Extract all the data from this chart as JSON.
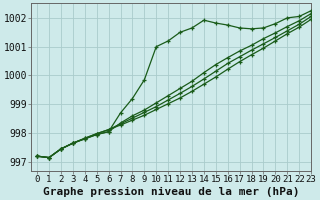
{
  "title": "Graphe pression niveau de la mer (hPa)",
  "xlim": [
    -0.5,
    23
  ],
  "ylim": [
    996.7,
    1002.5
  ],
  "yticks": [
    997,
    998,
    999,
    1000,
    1001,
    1002
  ],
  "xticks": [
    0,
    1,
    2,
    3,
    4,
    5,
    6,
    7,
    8,
    9,
    10,
    11,
    12,
    13,
    14,
    15,
    16,
    17,
    18,
    19,
    20,
    21,
    22,
    23
  ],
  "bg_color": "#ceeaea",
  "grid_color": "#aacccc",
  "line_color": "#1a5c1a",
  "series": [
    [
      997.2,
      997.15,
      997.45,
      997.65,
      997.8,
      997.95,
      998.05,
      998.7,
      999.2,
      999.85,
      1001.0,
      1001.2,
      1001.5,
      1001.65,
      1001.92,
      1001.82,
      1001.75,
      1001.65,
      1001.62,
      1001.65,
      1001.8,
      1002.0,
      1002.05,
      1002.25
    ],
    [
      997.2,
      997.15,
      997.45,
      997.65,
      997.8,
      997.95,
      998.05,
      998.35,
      998.6,
      998.8,
      999.05,
      999.3,
      999.55,
      999.8,
      1000.1,
      1000.38,
      1000.62,
      1000.85,
      1001.05,
      1001.28,
      1001.48,
      1001.7,
      1001.9,
      1002.15
    ],
    [
      997.2,
      997.15,
      997.45,
      997.65,
      997.82,
      997.98,
      998.12,
      998.32,
      998.52,
      998.72,
      998.92,
      999.15,
      999.38,
      999.62,
      999.88,
      1000.15,
      1000.42,
      1000.65,
      1000.88,
      1001.1,
      1001.32,
      1001.55,
      1001.78,
      1002.05
    ],
    [
      997.2,
      997.15,
      997.45,
      997.65,
      997.82,
      997.98,
      998.12,
      998.28,
      998.45,
      998.62,
      998.82,
      999.02,
      999.22,
      999.45,
      999.7,
      999.95,
      1000.22,
      1000.48,
      1000.72,
      1000.95,
      1001.2,
      1001.45,
      1001.68,
      1001.95
    ]
  ],
  "title_fontsize": 8,
  "tick_fontsize": 6.5
}
